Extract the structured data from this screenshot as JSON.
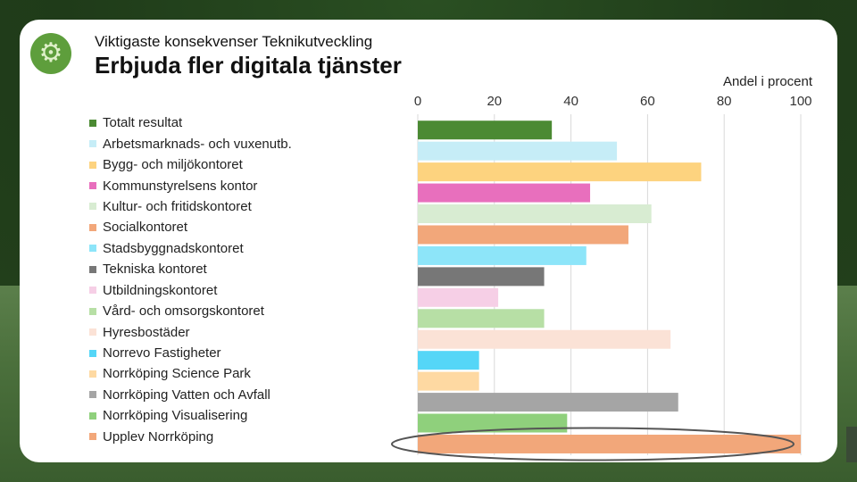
{
  "header": {
    "subtitle": "Viktigaste konsekvenser Teknikutveckling",
    "title": "Erbjuda fler digitala tjänster",
    "logo_icon": "gear-icon"
  },
  "chart_data": {
    "type": "bar",
    "orientation": "horizontal",
    "title": "Erbjuda fler digitala tjänster",
    "xlabel": "Andel i procent",
    "ylabel": "",
    "xlim": [
      0,
      100
    ],
    "xticks": [
      "0",
      "20",
      "40",
      "60",
      "80",
      "100"
    ],
    "grid": true,
    "legend_position": "left",
    "highlight": "Upplev Norrköping",
    "categories": [
      "Totalt resultat",
      "Arbetsmarknads- och vuxenutb.",
      "Bygg- och miljökontoret",
      "Kommunstyrelsens kontor",
      "Kultur- och fritidskontoret",
      "Socialkontoret",
      "Stadsbyggnadskontoret",
      "Tekniska kontoret",
      "Utbildningskontoret",
      "Vård- och omsorgskontoret",
      "Hyresbostäder",
      "Norrevo Fastigheter",
      "Norrköping Science Park",
      "Norrköping Vatten och Avfall",
      "Norrköping Visualisering",
      "Upplev Norrköping"
    ],
    "values": [
      35,
      52,
      74,
      45,
      61,
      55,
      44,
      33,
      21,
      33,
      66,
      16,
      16,
      68,
      39,
      100
    ],
    "colors": [
      "#4b8a33",
      "#c6edf7",
      "#fdd37f",
      "#e86fbd",
      "#d8ecd2",
      "#f2a77a",
      "#8de5f9",
      "#777777",
      "#f6cfe6",
      "#b7dfa5",
      "#fbe2d6",
      "#55d6f7",
      "#fed9a2",
      "#a5a5a5",
      "#8fd07c",
      "#f2a77a"
    ]
  }
}
